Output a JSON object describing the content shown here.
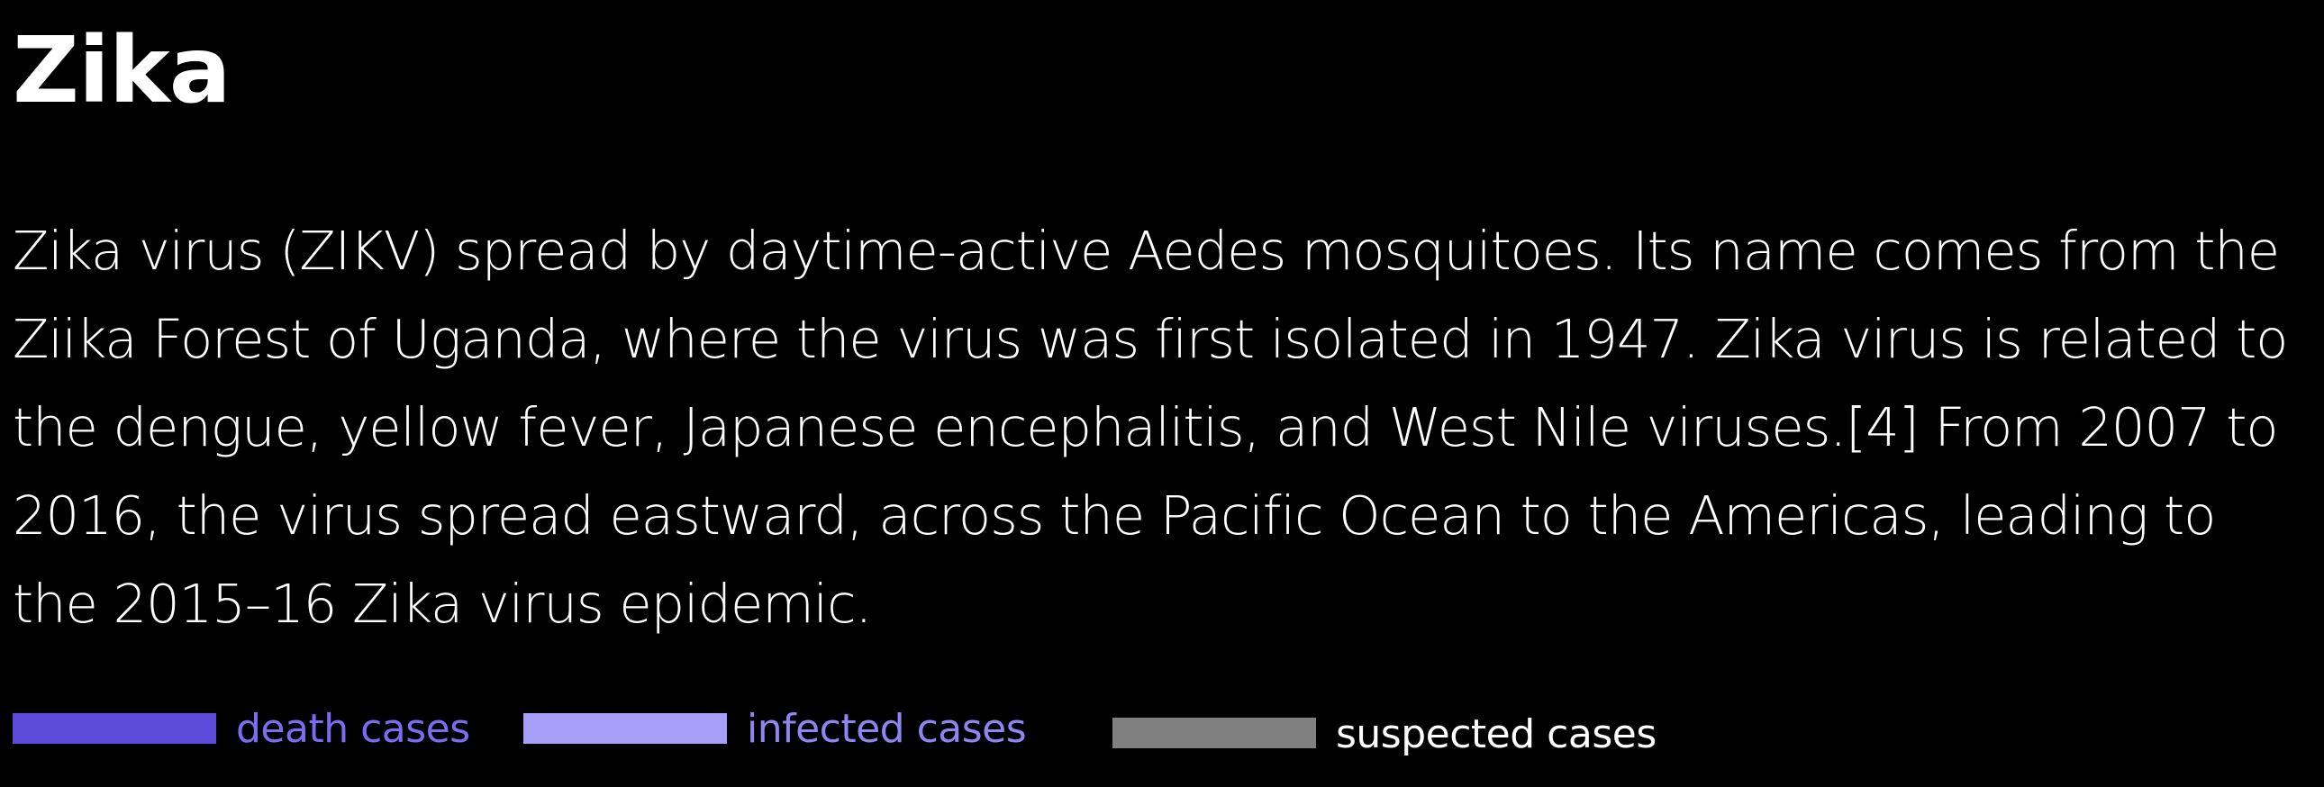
{
  "title": "Zika",
  "description": "Zika virus (ZIKV) spread by daytime-active Aedes mosquitoes. Its name comes from the Ziika Forest of Uganda, where the virus was first isolated in 1947. Zika virus is related to the dengue, yellow fever, Japanese encephalitis, and West Nile viruses.[4] From 2007 to 2016, the virus spread eastward, across the Pacific Ocean to the Americas, leading to the 2015–16 Zika virus epidemic.",
  "legend": [
    {
      "label": "death cases",
      "color": "#5b4bd8",
      "label_color": "#7b6cf2"
    },
    {
      "label": "infected cases",
      "color": "#a79ef7",
      "label_color": "#8f84f2"
    },
    {
      "label": "suspected cases",
      "color": "#808080",
      "label_color": "#ffffff"
    }
  ]
}
